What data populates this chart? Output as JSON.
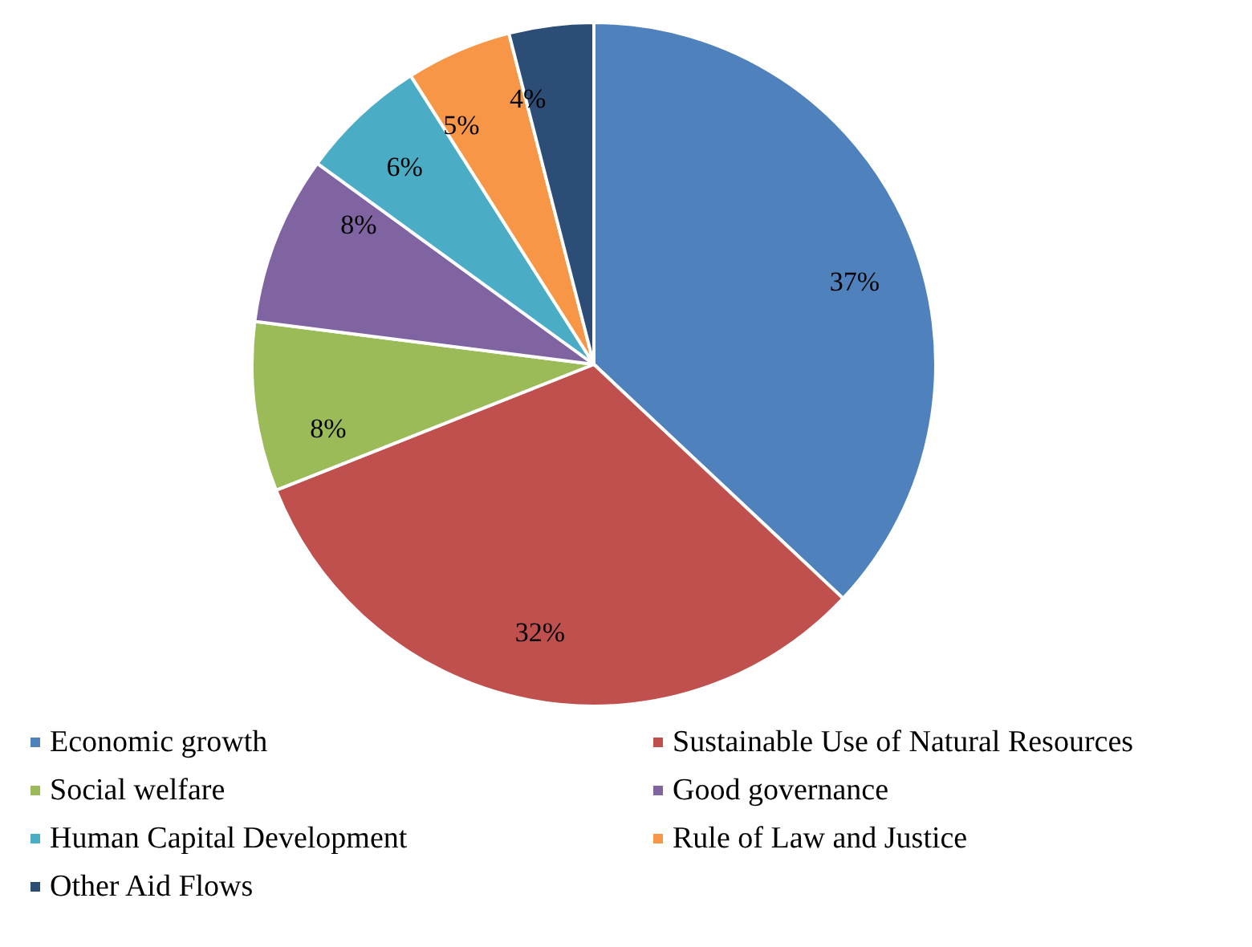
{
  "chart_data": {
    "type": "pie",
    "categories": [
      "Economic growth",
      "Sustainable Use of Natural Resources",
      "Social welfare",
      "Good governance",
      "Human Capital Development",
      "Rule of Law and Justice",
      "Other Aid Flows"
    ],
    "values": [
      37,
      32,
      8,
      8,
      6,
      5,
      4
    ],
    "colors": [
      "#4f81bd",
      "#c0504d",
      "#9bbb59",
      "#8064a2",
      "#4bacc6",
      "#f79646",
      "#2c4d75"
    ],
    "value_labels": [
      "37%",
      "32%",
      "8%",
      "8%",
      "6%",
      "5%",
      "4%"
    ],
    "legend": "bottom"
  }
}
